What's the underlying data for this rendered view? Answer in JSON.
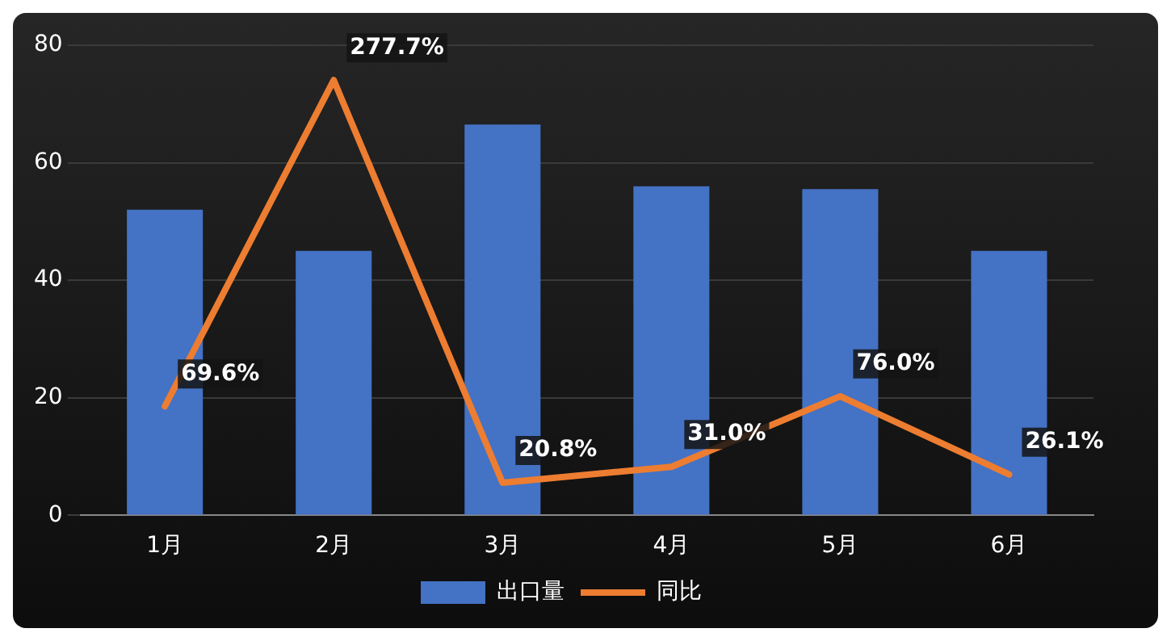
{
  "chart_data": {
    "type": "bar",
    "categories": [
      "1月",
      "2月",
      "3月",
      "4月",
      "5月",
      "6月"
    ],
    "series": [
      {
        "name": "出口量",
        "color": "#4472c4",
        "values": [
          52,
          45,
          66.5,
          56,
          55.5,
          45
        ]
      },
      {
        "name": "同比",
        "type": "line",
        "axis": "y2",
        "color": "#ed7d31",
        "marker": "none",
        "values": [
          69.6,
          277.7,
          20.8,
          31.0,
          76.0,
          26.1
        ],
        "value_labels": [
          "69.6%",
          "277.7%",
          "20.8%",
          "31.0%",
          "76.0%",
          "26.1%"
        ]
      }
    ],
    "ylim": [
      0,
      80
    ],
    "yticks": [
      0,
      20,
      40,
      60,
      80
    ],
    "y2lim": [
      0,
      300
    ],
    "grid": "y",
    "legend": "bottom",
    "tick_labels": "xy"
  }
}
